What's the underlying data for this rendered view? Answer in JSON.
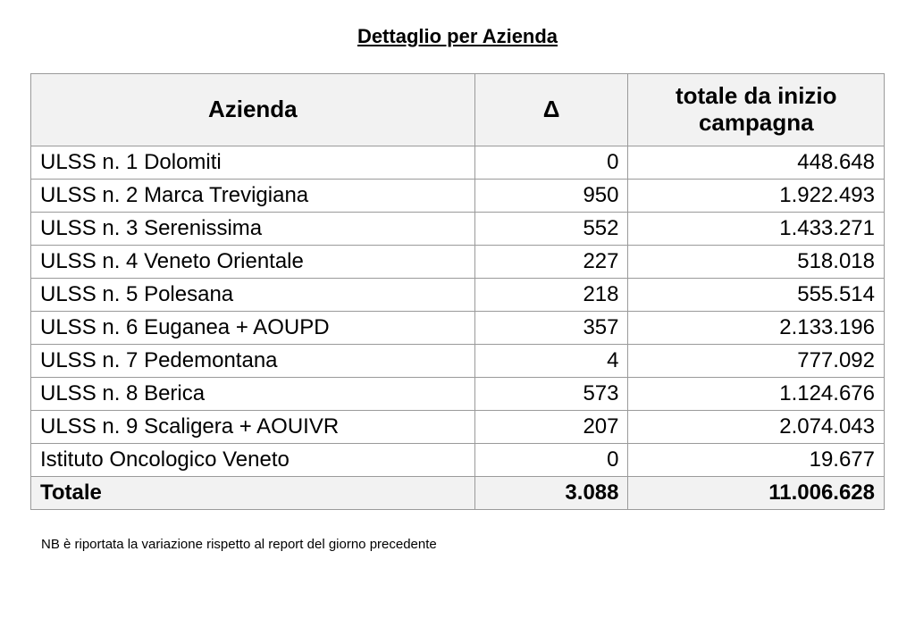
{
  "title": "Dettaglio per Azienda",
  "table": {
    "columns": {
      "azienda": "Azienda",
      "delta": "Δ",
      "totale": "totale da inizio campagna"
    },
    "rows": [
      {
        "azienda": "ULSS n. 1 Dolomiti",
        "delta": "0",
        "totale": "448.648"
      },
      {
        "azienda": "ULSS n. 2 Marca Trevigiana",
        "delta": "950",
        "totale": "1.922.493"
      },
      {
        "azienda": "ULSS n. 3 Serenissima",
        "delta": "552",
        "totale": "1.433.271"
      },
      {
        "azienda": "ULSS n. 4 Veneto Orientale",
        "delta": "227",
        "totale": "518.018"
      },
      {
        "azienda": "ULSS n. 5 Polesana",
        "delta": "218",
        "totale": "555.514"
      },
      {
        "azienda": "ULSS n. 6 Euganea + AOUPD",
        "delta": "357",
        "totale": "2.133.196"
      },
      {
        "azienda": "ULSS n. 7 Pedemontana",
        "delta": "4",
        "totale": "777.092"
      },
      {
        "azienda": "ULSS n. 8 Berica",
        "delta": "573",
        "totale": "1.124.676"
      },
      {
        "azienda": "ULSS n. 9 Scaligera + AOUIVR",
        "delta": "207",
        "totale": "2.074.043"
      },
      {
        "azienda": "Istituto Oncologico Veneto",
        "delta": "0",
        "totale": "19.677"
      }
    ],
    "total": {
      "azienda": "Totale",
      "delta": "3.088",
      "totale": "11.006.628"
    }
  },
  "footnote": "NB è riportata la variazione rispetto al report del giorno precedente"
}
